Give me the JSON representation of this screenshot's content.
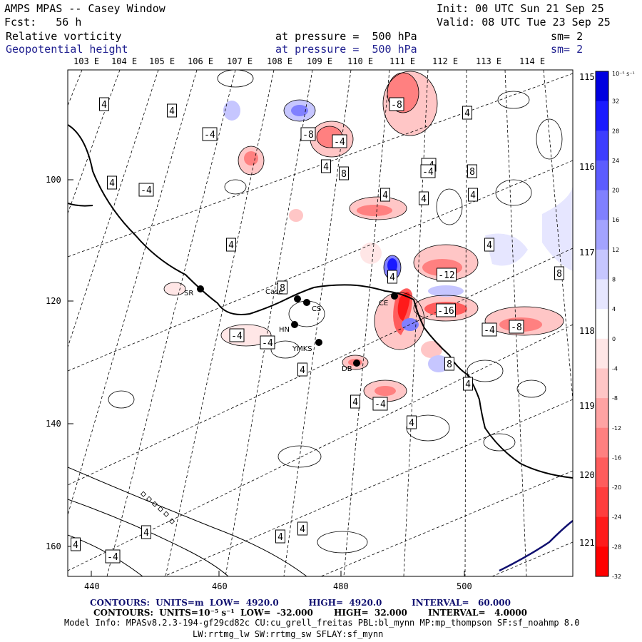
{
  "header": {
    "model": "AMPS MPAS -- Casey Window",
    "init": "Init: 00 UTC Sun 21 Sep 25",
    "forecast": "Fcst:   56 h",
    "valid": "Valid: 08 UTC Tue 23 Sep 25",
    "field1": {
      "name": "Relative vorticity",
      "level": "at pressure =  500 hPa",
      "sm": "sm= 2"
    },
    "field2": {
      "name": "Geopotential height",
      "level": "at pressure =  500 hPa",
      "sm": "sm= 2"
    }
  },
  "axes": {
    "top_lon_labels": [
      "103 E",
      "104 E",
      "105 E",
      "106 E",
      "107 E",
      "108 E",
      "109 E",
      "110 E",
      "111 E",
      "112 E",
      "113 E",
      "114 E"
    ],
    "right_lon_labels": [
      "115 E",
      "116 E",
      "117 E",
      "118 E",
      "119 E",
      "120 E",
      "121 E"
    ],
    "bottom_ticks": [
      "440",
      "460",
      "480",
      "500"
    ],
    "left_ticks": [
      "100",
      "120",
      "140",
      "160"
    ]
  },
  "colorbar": {
    "unit": "10⁻⁵ s⁻¹",
    "labels": [
      "32",
      "28",
      "24",
      "20",
      "16",
      "12",
      "8",
      "4",
      "0",
      "-4",
      "-8",
      "-12",
      "-16",
      "-20",
      "-24",
      "-28",
      "-32"
    ],
    "colors": [
      "#0000e0",
      "#1a1aff",
      "#3d3dff",
      "#5c5cff",
      "#8080ff",
      "#a3a3ff",
      "#c6c6ff",
      "#e6e6ff",
      "#ffffff",
      "#ffe6e6",
      "#ffc6c6",
      "#ffa3a3",
      "#ff8080",
      "#ff5c5c",
      "#ff3d3d",
      "#ff1a1a",
      "#ff0000"
    ]
  },
  "stations": [
    {
      "code": "SR"
    },
    {
      "code": "Case"
    },
    {
      "code": "CS"
    },
    {
      "code": "HN"
    },
    {
      "code": "YMKS"
    },
    {
      "code": "DB"
    },
    {
      "code": "CE"
    }
  ],
  "contour_labels": [
    "4",
    "4",
    "-4",
    "-8",
    "-4",
    "4",
    "8",
    "-8",
    "4",
    "4",
    "-4",
    "4",
    "4",
    "8",
    "4",
    "-4",
    "-4",
    "4",
    "4",
    "-12",
    "8",
    "8",
    "4",
    "-16",
    "-4",
    "-8",
    "-4",
    "-4",
    "4",
    "8",
    "4",
    "4",
    "-4",
    "4",
    "4",
    "4",
    "4",
    "4",
    "-4"
  ],
  "footer": {
    "line1": "CONTOURS:  UNITS=m  LOW=  4920.0          HIGH=  4920.0          INTERVAL=   60.000",
    "line2": "CONTOURS:  UNITS=10⁻⁵ s⁻¹  LOW=  -32.000       HIGH=  32.000       INTERVAL=   4.0000",
    "line3": "Model Info: MPASv8.2.3-194-gf29cd82c CU:cu_grell_freitas PBL:bl_mynn MP:mp_thompson SF:sf_noahmp 8.0",
    "line4": "LW:rrtmg_lw SW:rrtmg_sw SFLAY:sf_mynn"
  }
}
